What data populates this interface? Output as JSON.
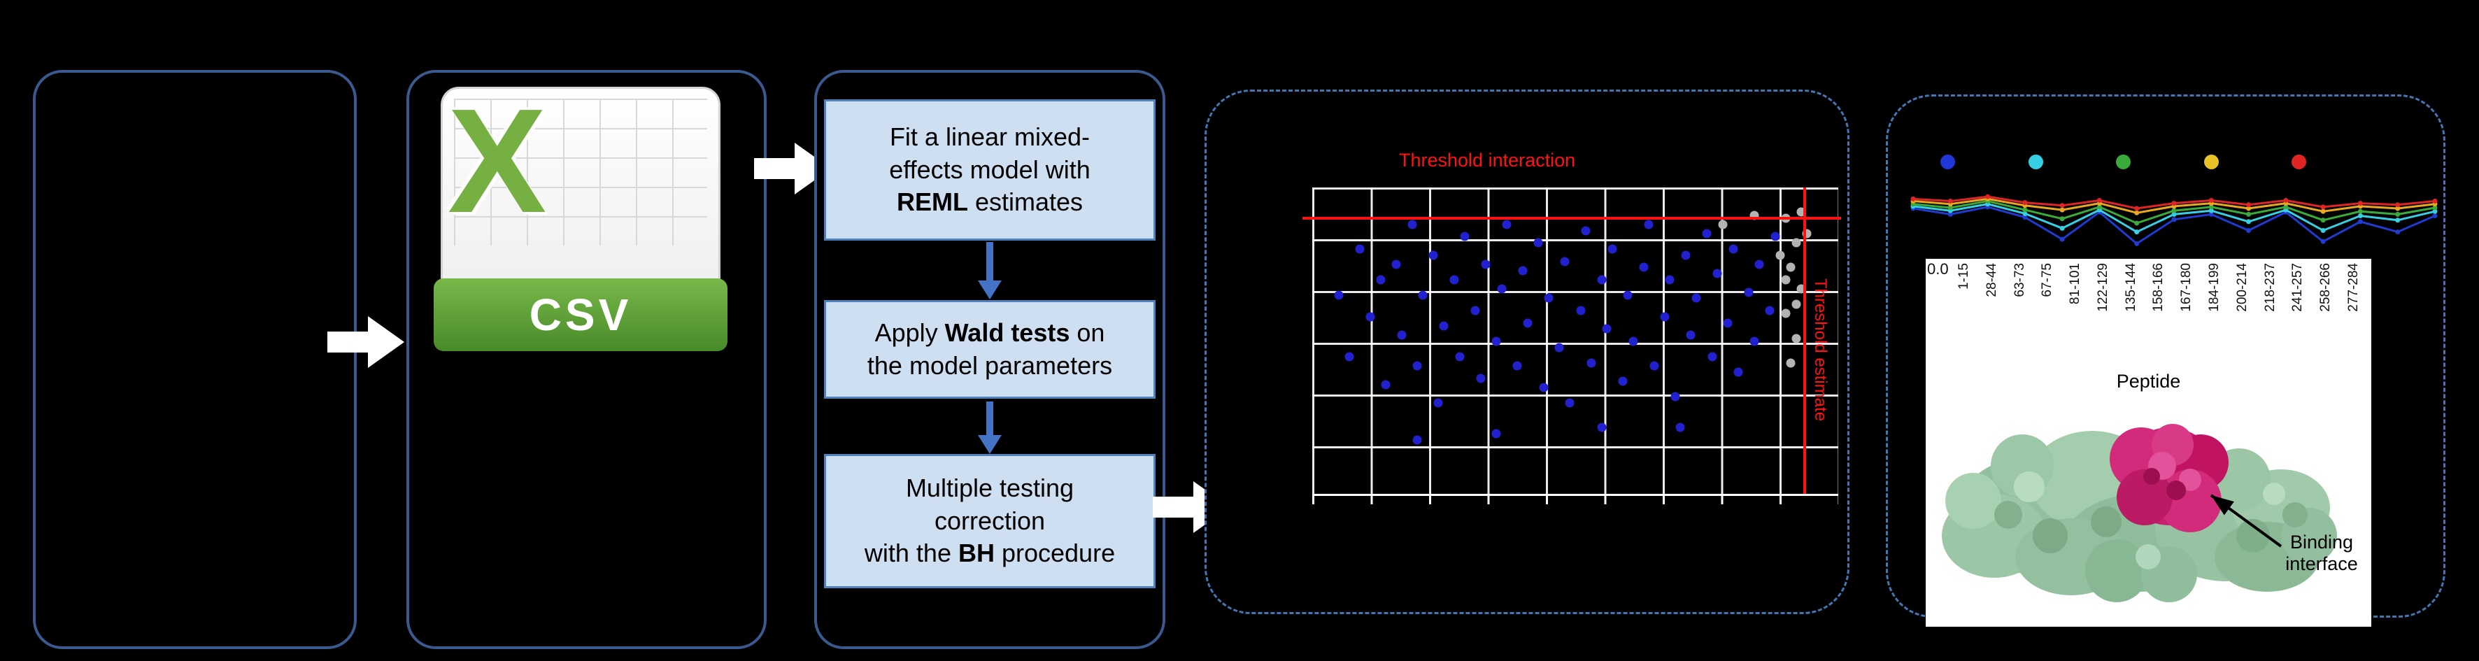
{
  "figure": {
    "background": "#000000",
    "panel_border_color": "#3a5a8f",
    "dashed_border_color": "#4576b4"
  },
  "csv_icon": {
    "letter": "X",
    "label": "CSV",
    "accent_green": "#76b043"
  },
  "process_steps": [
    {
      "pre": "Fit a linear mixed-\neffects model with\n",
      "bold": "REML",
      "post": " estimates"
    },
    {
      "pre": "Apply ",
      "bold": "Wald tests",
      "post": " on\nthe model parameters"
    },
    {
      "pre": "Multiple testing\ncorrection\nwith the ",
      "bold": "BH",
      "post": " procedure"
    }
  ],
  "chart_data": [
    {
      "type": "scatter",
      "title": "Threshold interaction",
      "vline_label": "Threshold estimate",
      "threshold_color": "#ff1212",
      "grid": true,
      "hline_y_pct": 10,
      "vline_x_pct": 93.4,
      "series": [
        {
          "name": "significant-points",
          "color": "#2121cf",
          "points_pct": [
            [
              5,
              35
            ],
            [
              7,
              55
            ],
            [
              9,
              20
            ],
            [
              11,
              42
            ],
            [
              13,
              30
            ],
            [
              14,
              64
            ],
            [
              16,
              25
            ],
            [
              17,
              48
            ],
            [
              19,
              12
            ],
            [
              20,
              58
            ],
            [
              21,
              35
            ],
            [
              23,
              22
            ],
            [
              24,
              70
            ],
            [
              25,
              45
            ],
            [
              27,
              30
            ],
            [
              28,
              55
            ],
            [
              29,
              16
            ],
            [
              31,
              40
            ],
            [
              32,
              62
            ],
            [
              33,
              25
            ],
            [
              35,
              50
            ],
            [
              36,
              33
            ],
            [
              37,
              12
            ],
            [
              39,
              58
            ],
            [
              40,
              27
            ],
            [
              41,
              44
            ],
            [
              43,
              18
            ],
            [
              44,
              65
            ],
            [
              45,
              36
            ],
            [
              47,
              52
            ],
            [
              48,
              24
            ],
            [
              49,
              70
            ],
            [
              51,
              40
            ],
            [
              52,
              14
            ],
            [
              53,
              57
            ],
            [
              55,
              30
            ],
            [
              56,
              46
            ],
            [
              57,
              20
            ],
            [
              59,
              63
            ],
            [
              60,
              35
            ],
            [
              61,
              50
            ],
            [
              63,
              26
            ],
            [
              64,
              12
            ],
            [
              65,
              58
            ],
            [
              67,
              42
            ],
            [
              68,
              30
            ],
            [
              69,
              68
            ],
            [
              71,
              22
            ],
            [
              72,
              48
            ],
            [
              73,
              36
            ],
            [
              75,
              15
            ],
            [
              76,
              55
            ],
            [
              77,
              28
            ],
            [
              79,
              44
            ],
            [
              80,
              20
            ],
            [
              81,
              60
            ],
            [
              83,
              34
            ],
            [
              84,
              50
            ],
            [
              85,
              25
            ],
            [
              87,
              40
            ],
            [
              88,
              16
            ],
            [
              35,
              80
            ],
            [
              55,
              78
            ],
            [
              20,
              82
            ],
            [
              70,
              78
            ]
          ]
        },
        {
          "name": "nonsignificant-points",
          "color": "#b3b3b3",
          "points_pct": [
            [
              90,
              10
            ],
            [
              92,
              18
            ],
            [
              91,
              26
            ],
            [
              93,
              33
            ],
            [
              90,
              41
            ],
            [
              92,
              49
            ],
            [
              91,
              57
            ],
            [
              93,
              8
            ],
            [
              89,
              22
            ],
            [
              94,
              15
            ],
            [
              92,
              38
            ],
            [
              90,
              30
            ],
            [
              78,
              12
            ],
            [
              84,
              9
            ]
          ]
        }
      ]
    },
    {
      "type": "line",
      "x_axis_title": "Peptide",
      "y_tick_label": "0.0",
      "ylim": [
        0,
        1
      ],
      "categories": [
        "1-15",
        "28-44",
        "63-73",
        "67-75",
        "81-101",
        "122-129",
        "135-144",
        "158-166",
        "167-180",
        "184-199",
        "200-214",
        "218-237",
        "241-257",
        "258-266",
        "277-284"
      ],
      "legend_colors": [
        "#2038d8",
        "#37cfe3",
        "#3aab3a",
        "#e8c227",
        "#e02525"
      ],
      "series": [
        {
          "name": "state-blue",
          "color": "#1f3bd0",
          "values": [
            0.6,
            0.52,
            0.62,
            0.48,
            0.18,
            0.55,
            0.12,
            0.45,
            0.52,
            0.3,
            0.55,
            0.15,
            0.42,
            0.28,
            0.5
          ]
        },
        {
          "name": "state-cyan",
          "color": "#37cfe3",
          "values": [
            0.63,
            0.57,
            0.66,
            0.53,
            0.33,
            0.58,
            0.28,
            0.52,
            0.57,
            0.42,
            0.58,
            0.3,
            0.5,
            0.44,
            0.56
          ]
        },
        {
          "name": "state-green",
          "color": "#3aab3a",
          "values": [
            0.66,
            0.61,
            0.7,
            0.58,
            0.46,
            0.62,
            0.4,
            0.57,
            0.62,
            0.52,
            0.62,
            0.44,
            0.56,
            0.52,
            0.61
          ]
        },
        {
          "name": "state-yellow",
          "color": "#e8a820",
          "values": [
            0.7,
            0.66,
            0.73,
            0.64,
            0.58,
            0.67,
            0.54,
            0.63,
            0.67,
            0.6,
            0.67,
            0.56,
            0.63,
            0.6,
            0.66
          ]
        },
        {
          "name": "state-red",
          "color": "#e02525",
          "values": [
            0.73,
            0.7,
            0.76,
            0.68,
            0.64,
            0.71,
            0.6,
            0.67,
            0.71,
            0.65,
            0.71,
            0.62,
            0.67,
            0.65,
            0.7
          ]
        }
      ]
    }
  ],
  "structure_annotation": {
    "text": "Binding\ninterface"
  }
}
